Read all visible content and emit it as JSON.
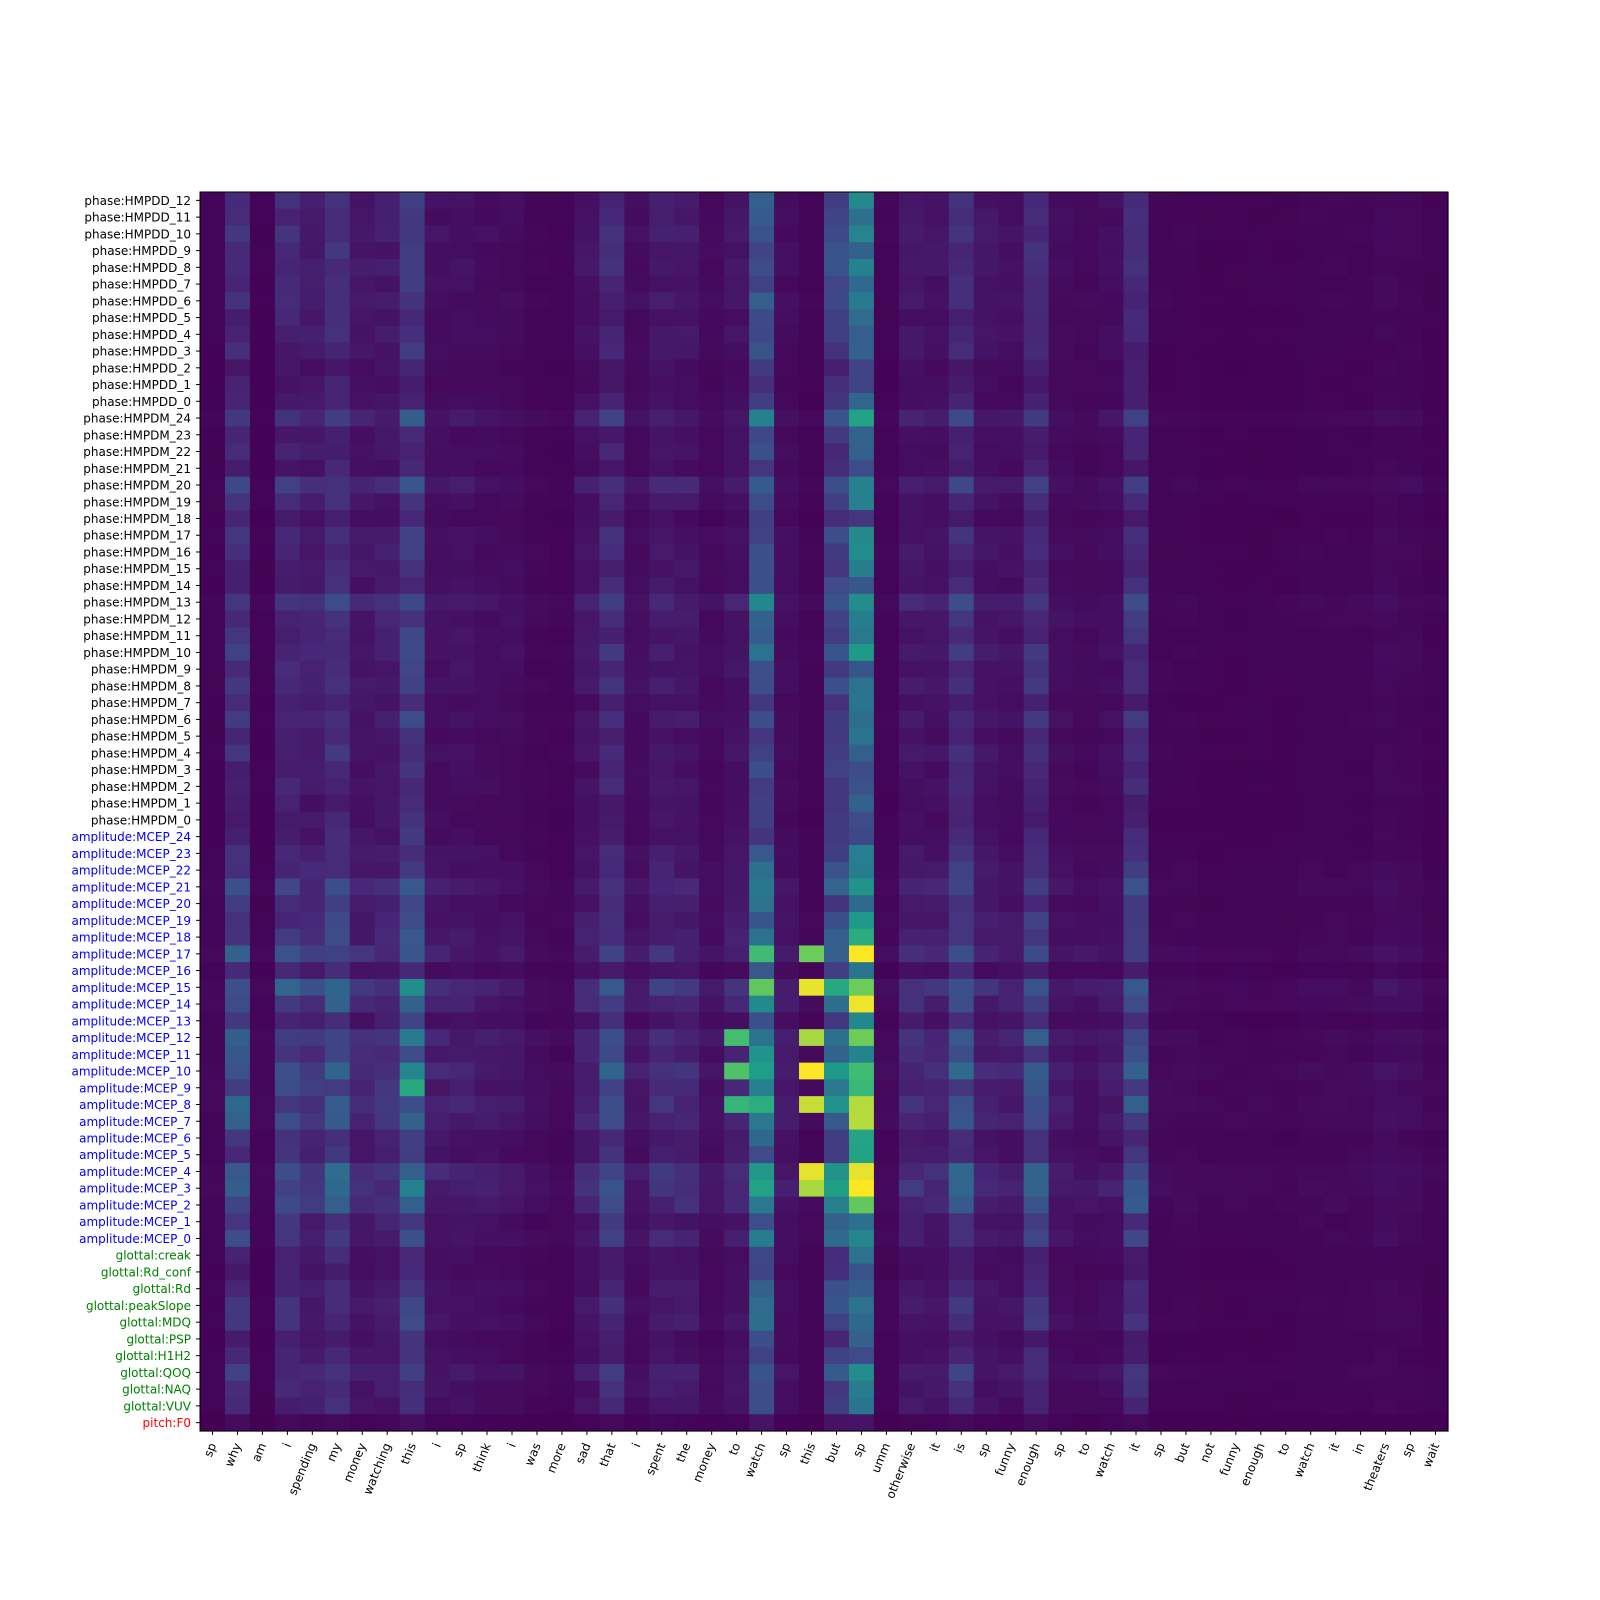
{
  "chart_data": {
    "type": "heatmap",
    "title": "",
    "xlabel": "",
    "ylabel": "",
    "colormap": "viridis",
    "value_range": [
      0,
      1
    ],
    "x_labels": [
      "sp",
      "why",
      "am",
      "i",
      "spending",
      "my",
      "money",
      "watching",
      "this",
      "i",
      "sp",
      "think",
      "i",
      "was",
      "more",
      "sad",
      "that",
      "i",
      "spent",
      "the",
      "money",
      "to",
      "watch",
      "sp",
      "this",
      "but",
      "sp",
      "umm",
      "otherwise",
      "it",
      "is",
      "sp",
      "funny",
      "enough",
      "sp",
      "to",
      "watch",
      "it",
      "sp",
      "but",
      "not",
      "funny",
      "enough",
      "to",
      "watch",
      "it",
      "in",
      "theaters",
      "sp",
      "wait"
    ],
    "y_labels": [
      {
        "text": "phase:HMPDD_12",
        "group": "phase"
      },
      {
        "text": "phase:HMPDD_11",
        "group": "phase"
      },
      {
        "text": "phase:HMPDD_10",
        "group": "phase"
      },
      {
        "text": "phase:HMPDD_9",
        "group": "phase"
      },
      {
        "text": "phase:HMPDD_8",
        "group": "phase"
      },
      {
        "text": "phase:HMPDD_7",
        "group": "phase"
      },
      {
        "text": "phase:HMPDD_6",
        "group": "phase"
      },
      {
        "text": "phase:HMPDD_5",
        "group": "phase"
      },
      {
        "text": "phase:HMPDD_4",
        "group": "phase"
      },
      {
        "text": "phase:HMPDD_3",
        "group": "phase"
      },
      {
        "text": "phase:HMPDD_2",
        "group": "phase"
      },
      {
        "text": "phase:HMPDD_1",
        "group": "phase"
      },
      {
        "text": "phase:HMPDD_0",
        "group": "phase"
      },
      {
        "text": "phase:HMPDM_24",
        "group": "phase"
      },
      {
        "text": "phase:HMPDM_23",
        "group": "phase"
      },
      {
        "text": "phase:HMPDM_22",
        "group": "phase"
      },
      {
        "text": "phase:HMPDM_21",
        "group": "phase"
      },
      {
        "text": "phase:HMPDM_20",
        "group": "phase"
      },
      {
        "text": "phase:HMPDM_19",
        "group": "phase"
      },
      {
        "text": "phase:HMPDM_18",
        "group": "phase"
      },
      {
        "text": "phase:HMPDM_17",
        "group": "phase"
      },
      {
        "text": "phase:HMPDM_16",
        "group": "phase"
      },
      {
        "text": "phase:HMPDM_15",
        "group": "phase"
      },
      {
        "text": "phase:HMPDM_14",
        "group": "phase"
      },
      {
        "text": "phase:HMPDM_13",
        "group": "phase"
      },
      {
        "text": "phase:HMPDM_12",
        "group": "phase"
      },
      {
        "text": "phase:HMPDM_11",
        "group": "phase"
      },
      {
        "text": "phase:HMPDM_10",
        "group": "phase"
      },
      {
        "text": "phase:HMPDM_9",
        "group": "phase"
      },
      {
        "text": "phase:HMPDM_8",
        "group": "phase"
      },
      {
        "text": "phase:HMPDM_7",
        "group": "phase"
      },
      {
        "text": "phase:HMPDM_6",
        "group": "phase"
      },
      {
        "text": "phase:HMPDM_5",
        "group": "phase"
      },
      {
        "text": "phase:HMPDM_4",
        "group": "phase"
      },
      {
        "text": "phase:HMPDM_3",
        "group": "phase"
      },
      {
        "text": "phase:HMPDM_2",
        "group": "phase"
      },
      {
        "text": "phase:HMPDM_1",
        "group": "phase"
      },
      {
        "text": "phase:HMPDM_0",
        "group": "phase"
      },
      {
        "text": "amplitude:MCEP_24",
        "group": "amplitude"
      },
      {
        "text": "amplitude:MCEP_23",
        "group": "amplitude"
      },
      {
        "text": "amplitude:MCEP_22",
        "group": "amplitude"
      },
      {
        "text": "amplitude:MCEP_21",
        "group": "amplitude"
      },
      {
        "text": "amplitude:MCEP_20",
        "group": "amplitude"
      },
      {
        "text": "amplitude:MCEP_19",
        "group": "amplitude"
      },
      {
        "text": "amplitude:MCEP_18",
        "group": "amplitude"
      },
      {
        "text": "amplitude:MCEP_17",
        "group": "amplitude"
      },
      {
        "text": "amplitude:MCEP_16",
        "group": "amplitude"
      },
      {
        "text": "amplitude:MCEP_15",
        "group": "amplitude"
      },
      {
        "text": "amplitude:MCEP_14",
        "group": "amplitude"
      },
      {
        "text": "amplitude:MCEP_13",
        "group": "amplitude"
      },
      {
        "text": "amplitude:MCEP_12",
        "group": "amplitude"
      },
      {
        "text": "amplitude:MCEP_11",
        "group": "amplitude"
      },
      {
        "text": "amplitude:MCEP_10",
        "group": "amplitude"
      },
      {
        "text": "amplitude:MCEP_9",
        "group": "amplitude"
      },
      {
        "text": "amplitude:MCEP_8",
        "group": "amplitude"
      },
      {
        "text": "amplitude:MCEP_7",
        "group": "amplitude"
      },
      {
        "text": "amplitude:MCEP_6",
        "group": "amplitude"
      },
      {
        "text": "amplitude:MCEP_5",
        "group": "amplitude"
      },
      {
        "text": "amplitude:MCEP_4",
        "group": "amplitude"
      },
      {
        "text": "amplitude:MCEP_3",
        "group": "amplitude"
      },
      {
        "text": "amplitude:MCEP_2",
        "group": "amplitude"
      },
      {
        "text": "amplitude:MCEP_1",
        "group": "amplitude"
      },
      {
        "text": "amplitude:MCEP_0",
        "group": "amplitude"
      },
      {
        "text": "glottal:creak",
        "group": "glottal"
      },
      {
        "text": "glottal:Rd_conf",
        "group": "glottal"
      },
      {
        "text": "glottal:Rd",
        "group": "glottal"
      },
      {
        "text": "glottal:peakSlope",
        "group": "glottal"
      },
      {
        "text": "glottal:MDQ",
        "group": "glottal"
      },
      {
        "text": "glottal:PSP",
        "group": "glottal"
      },
      {
        "text": "glottal:H1H2",
        "group": "glottal"
      },
      {
        "text": "glottal:QOQ",
        "group": "glottal"
      },
      {
        "text": "glottal:NAQ",
        "group": "glottal"
      },
      {
        "text": "glottal:VUV",
        "group": "glottal"
      },
      {
        "text": "pitch:F0",
        "group": "pitch"
      }
    ],
    "group_colors": {
      "phase": "#000000",
      "amplitude": "#0000ff",
      "glottal": "#008000",
      "pitch": "#ff0000"
    },
    "column_strength": [
      0.02,
      0.3,
      0.02,
      0.25,
      0.18,
      0.3,
      0.14,
      0.16,
      0.38,
      0.1,
      0.1,
      0.08,
      0.07,
      0.04,
      0.03,
      0.12,
      0.26,
      0.08,
      0.16,
      0.14,
      0.06,
      0.12,
      0.6,
      0.08,
      0.03,
      0.45,
      0.85,
      0.03,
      0.14,
      0.12,
      0.28,
      0.12,
      0.1,
      0.28,
      0.08,
      0.06,
      0.08,
      0.28,
      0.03,
      0.03,
      0.02,
      0.02,
      0.02,
      0.02,
      0.03,
      0.03,
      0.03,
      0.05,
      0.04,
      0.02
    ],
    "row_strength": [
      0.5,
      0.5,
      0.55,
      0.5,
      0.5,
      0.45,
      0.5,
      0.42,
      0.45,
      0.42,
      0.3,
      0.3,
      0.35,
      0.7,
      0.4,
      0.4,
      0.35,
      0.75,
      0.45,
      0.3,
      0.5,
      0.5,
      0.45,
      0.45,
      0.8,
      0.6,
      0.5,
      0.6,
      0.5,
      0.55,
      0.4,
      0.55,
      0.4,
      0.5,
      0.4,
      0.45,
      0.35,
      0.35,
      0.4,
      0.5,
      0.6,
      0.8,
      0.55,
      0.65,
      0.7,
      1.0,
      0.4,
      1.2,
      0.9,
      0.5,
      1.0,
      0.8,
      1.1,
      0.9,
      1.0,
      0.9,
      0.6,
      0.6,
      1.1,
      1.1,
      0.9,
      0.6,
      0.7,
      0.4,
      0.35,
      0.5,
      0.55,
      0.55,
      0.35,
      0.4,
      0.65,
      0.5,
      0.45,
      0.1
    ],
    "peak_cells": [
      {
        "x": "this",
        "x_index": 24,
        "y": "amplitude:MCEP_10",
        "value": 1.0
      },
      {
        "x": "this",
        "x_index": 24,
        "y": "amplitude:MCEP_15",
        "value": 0.98
      },
      {
        "x": "this",
        "x_index": 24,
        "y": "amplitude:MCEP_4",
        "value": 0.98
      },
      {
        "x": "this",
        "x_index": 24,
        "y": "amplitude:MCEP_8",
        "value": 0.95
      },
      {
        "x": "this",
        "x_index": 24,
        "y": "amplitude:MCEP_3",
        "value": 0.92
      },
      {
        "x": "this",
        "x_index": 24,
        "y": "amplitude:MCEP_12",
        "value": 0.92
      },
      {
        "x": "this",
        "x_index": 24,
        "y": "amplitude:MCEP_17",
        "value": 0.85
      },
      {
        "x": "to",
        "x_index": 21,
        "y": "amplitude:MCEP_10",
        "value": 0.8
      },
      {
        "x": "to",
        "x_index": 21,
        "y": "amplitude:MCEP_12",
        "value": 0.78
      },
      {
        "x": "to",
        "x_index": 21,
        "y": "amplitude:MCEP_8",
        "value": 0.75
      },
      {
        "x": "this",
        "x_index": 8,
        "y": "amplitude:MCEP_9",
        "value": 0.68
      }
    ]
  }
}
